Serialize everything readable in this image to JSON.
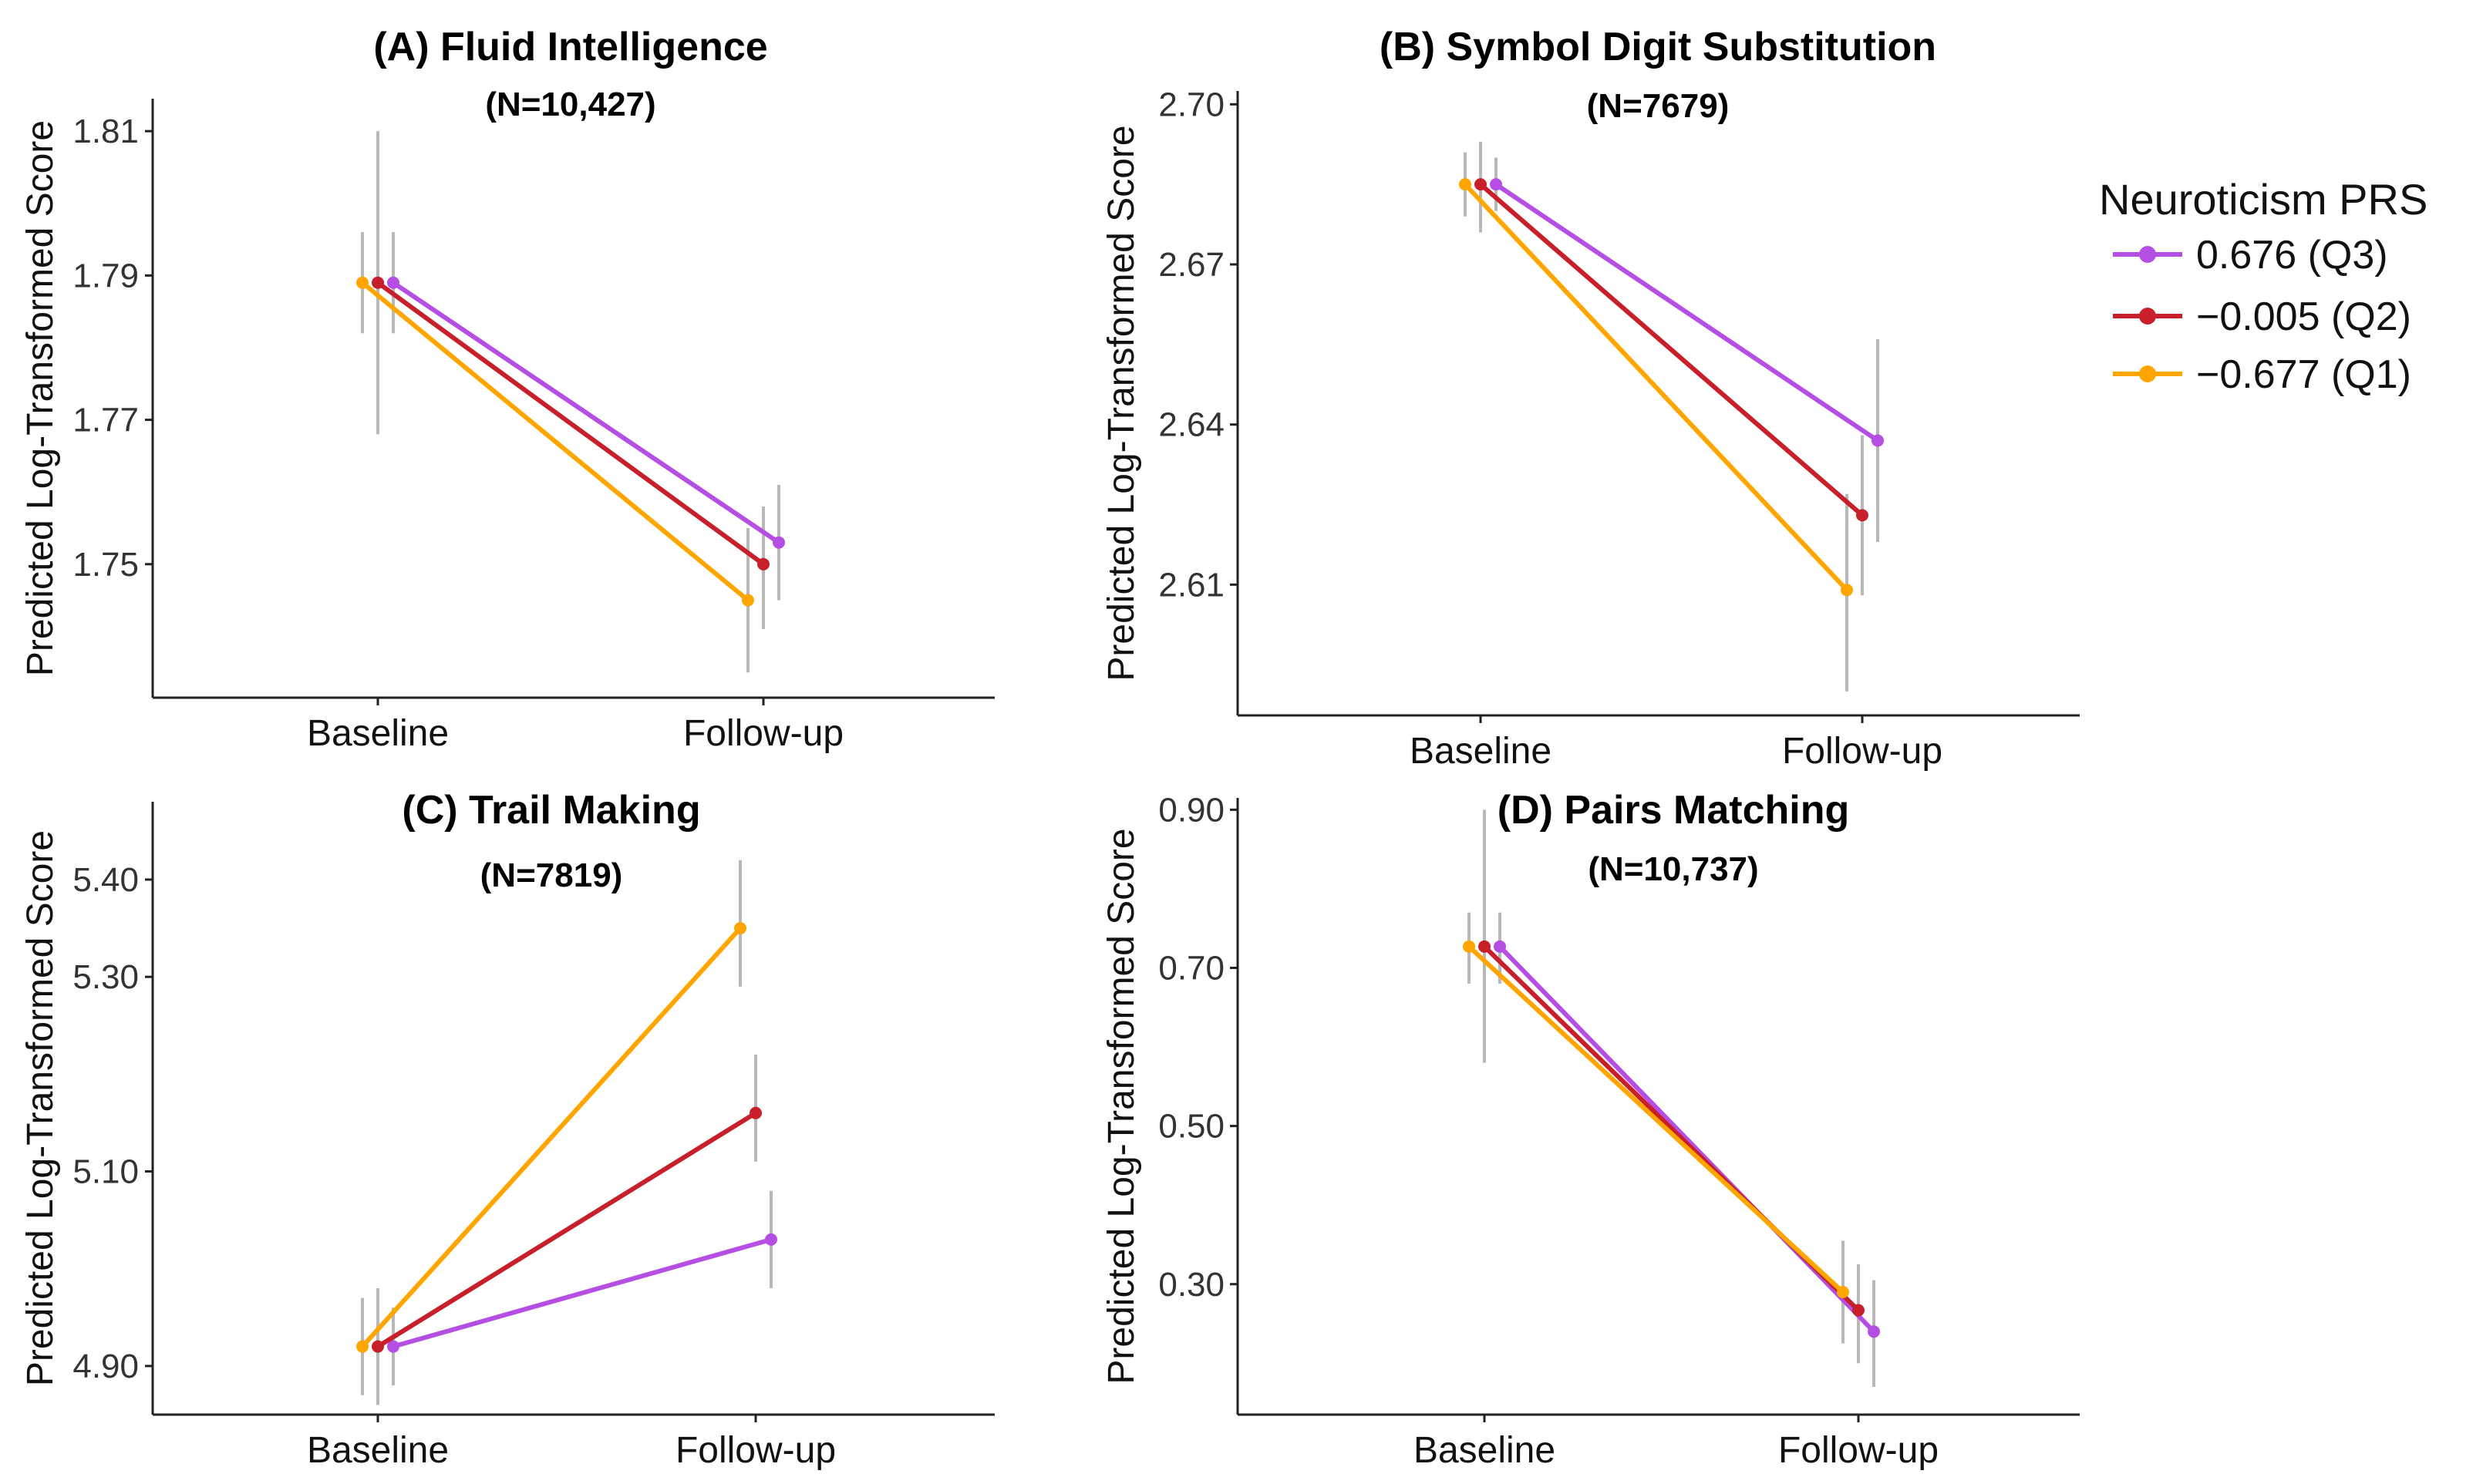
{
  "legend": {
    "title": "Neuroticism PRS",
    "entries": [
      {
        "label": "0.676 (Q3)",
        "color": "#b54fe3"
      },
      {
        "label": "−0.005 (Q2)",
        "color": "#c8202a"
      },
      {
        "label": "−0.677 (Q1)",
        "color": "#ffa500"
      }
    ]
  },
  "chart_data": [
    {
      "type": "line",
      "title": "(A)   Fluid Intelligence",
      "subtitle": "(N=10,427)",
      "ylabel": "Predicted Log-Transformed Score",
      "categories": [
        "Baseline",
        "Follow-up"
      ],
      "yticks": [
        1.81,
        1.79,
        1.77,
        1.75
      ],
      "ytick_labels": [
        "1.81",
        "1.79",
        "1.77",
        "1.75"
      ],
      "ylim": [
        1.7315,
        1.8145
      ],
      "series": [
        {
          "name": "0.676 (Q3)",
          "color": "#b54fe3",
          "values": [
            1.789,
            1.753
          ],
          "lower": [
            1.782,
            1.745
          ],
          "upper": [
            1.796,
            1.761
          ]
        },
        {
          "name": "−0.005 (Q2)",
          "color": "#c8202a",
          "values": [
            1.789,
            1.75
          ],
          "lower": [
            1.768,
            1.741
          ],
          "upper": [
            1.81,
            1.758
          ]
        },
        {
          "name": "−0.677 (Q1)",
          "color": "#ffa500",
          "values": [
            1.789,
            1.745
          ],
          "lower": [
            1.782,
            1.735
          ],
          "upper": [
            1.796,
            1.755
          ]
        }
      ]
    },
    {
      "type": "line",
      "title": "(B) Symbol Digit Substitution",
      "subtitle": "(N=7679)",
      "ylabel": "Predicted Log-Transformed Score",
      "categories": [
        "Baseline",
        "Follow-up"
      ],
      "yticks": [
        2.7,
        2.67,
        2.64,
        2.61
      ],
      "ytick_labels": [
        "2.70",
        "2.67",
        "2.64",
        "2.61"
      ],
      "ylim": [
        2.5855,
        2.7025
      ],
      "series": [
        {
          "name": "0.676 (Q3)",
          "color": "#b54fe3",
          "values": [
            2.685,
            2.637
          ],
          "lower": [
            2.68,
            2.618
          ],
          "upper": [
            2.69,
            2.656
          ]
        },
        {
          "name": "−0.005 (Q2)",
          "color": "#c8202a",
          "values": [
            2.685,
            2.623
          ],
          "lower": [
            2.676,
            2.608
          ],
          "upper": [
            2.693,
            2.638
          ]
        },
        {
          "name": "−0.677 (Q1)",
          "color": "#ffa500",
          "values": [
            2.685,
            2.609
          ],
          "lower": [
            2.679,
            2.59
          ],
          "upper": [
            2.691,
            2.627
          ]
        }
      ]
    },
    {
      "type": "line",
      "title": "(C) Trail Making",
      "subtitle": "(N=7819)",
      "ylabel": "Predicted Log-Transformed Score",
      "categories": [
        "Baseline",
        "Follow-up"
      ],
      "yticks": [
        5.4,
        5.3,
        5.1,
        4.9
      ],
      "ytick_labels": [
        "5.40",
        "5.30",
        "5.10",
        "4.90"
      ],
      "ylim": [
        4.85,
        5.48
      ],
      "series": [
        {
          "name": "0.676 (Q3)",
          "color": "#b54fe3",
          "values": [
            4.92,
            5.03
          ],
          "lower": [
            4.88,
            4.98
          ],
          "upper": [
            4.96,
            5.08
          ]
        },
        {
          "name": "−0.005 (Q2)",
          "color": "#c8202a",
          "values": [
            4.92,
            5.16
          ],
          "lower": [
            4.86,
            5.11
          ],
          "upper": [
            4.98,
            5.22
          ]
        },
        {
          "name": "−0.677 (Q1)",
          "color": "#ffa500",
          "values": [
            4.92,
            5.35
          ],
          "lower": [
            4.87,
            5.29
          ],
          "upper": [
            4.97,
            5.42
          ]
        }
      ]
    },
    {
      "type": "line",
      "title": "(D) Pairs Matching",
      "subtitle": "(N=10,737)",
      "ylabel": "Predicted Log-Transformed Score",
      "categories": [
        "Baseline",
        "Follow-up"
      ],
      "yticks": [
        0.9,
        0.7,
        0.5,
        0.3
      ],
      "ytick_labels": [
        "0.90",
        "0.70",
        "0.50",
        "0.30"
      ],
      "ylim": [
        0.135,
        0.915
      ],
      "series": [
        {
          "name": "0.676 (Q3)",
          "color": "#b54fe3",
          "values": [
            0.727,
            0.24
          ],
          "lower": [
            0.68,
            0.17
          ],
          "upper": [
            0.77,
            0.305
          ]
        },
        {
          "name": "−0.005 (Q2)",
          "color": "#c8202a",
          "values": [
            0.727,
            0.267
          ],
          "lower": [
            0.58,
            0.2
          ],
          "upper": [
            0.9,
            0.325
          ]
        },
        {
          "name": "−0.677 (Q1)",
          "color": "#ffa500",
          "values": [
            0.727,
            0.29
          ],
          "lower": [
            0.68,
            0.225
          ],
          "upper": [
            0.77,
            0.355
          ]
        }
      ]
    }
  ]
}
